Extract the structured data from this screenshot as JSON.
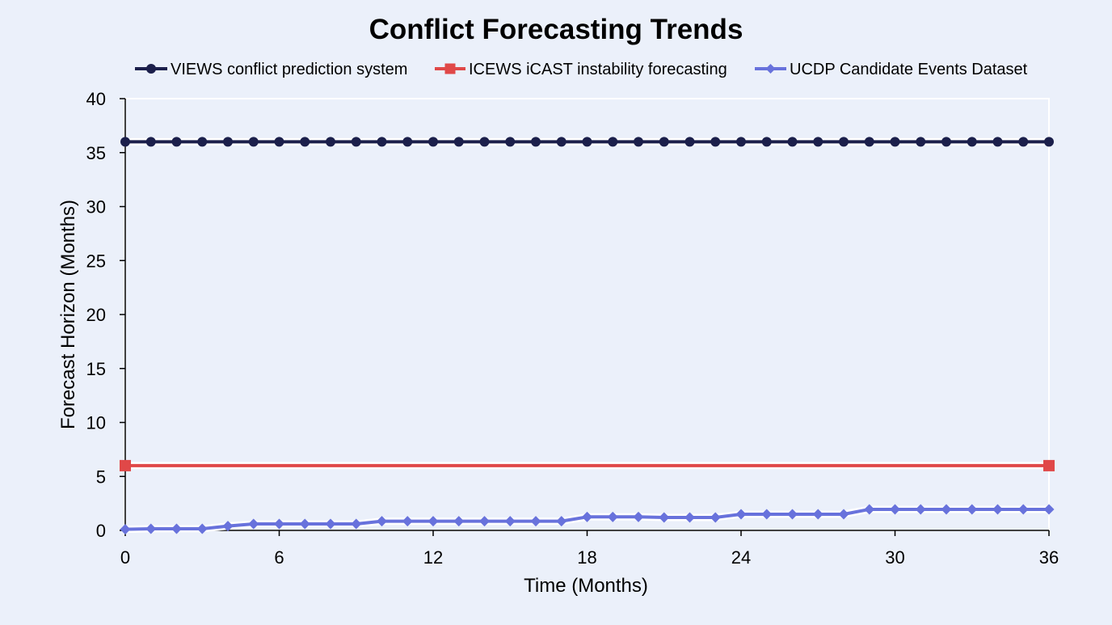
{
  "chart_data": {
    "type": "line",
    "title": "Conflict Forecasting Trends",
    "xlabel": "Time (Months)",
    "ylabel": "Forecast Horizon (Months)",
    "xlim": [
      0,
      36
    ],
    "ylim": [
      0,
      40
    ],
    "xticks": [
      0,
      6,
      12,
      18,
      24,
      30,
      36
    ],
    "yticks": [
      0,
      5,
      10,
      15,
      20,
      25,
      30,
      35,
      40
    ],
    "xtick_labels": [
      "0",
      "6",
      "12",
      "18",
      "24",
      "30",
      "36"
    ],
    "ytick_labels": [
      "0",
      "5",
      "10",
      "15",
      "20",
      "25",
      "30",
      "35",
      "40"
    ],
    "grid": false,
    "legend_position": "top",
    "series": [
      {
        "name": "VIEWS conflict prediction system",
        "color": "#1b1f4b",
        "marker": "circle",
        "x": [
          0,
          1,
          2,
          3,
          4,
          5,
          6,
          7,
          8,
          9,
          10,
          11,
          12,
          13,
          14,
          15,
          16,
          17,
          18,
          19,
          20,
          21,
          22,
          23,
          24,
          25,
          26,
          27,
          28,
          29,
          30,
          31,
          32,
          33,
          34,
          35,
          36
        ],
        "y": [
          36,
          36,
          36,
          36,
          36,
          36,
          36,
          36,
          36,
          36,
          36,
          36,
          36,
          36,
          36,
          36,
          36,
          36,
          36,
          36,
          36,
          36,
          36,
          36,
          36,
          36,
          36,
          36,
          36,
          36,
          36,
          36,
          36,
          36,
          36,
          36,
          36
        ]
      },
      {
        "name": "ICEWS iCAST instability forecasting",
        "color": "#e04848",
        "marker": "square",
        "x": [
          0,
          36
        ],
        "y": [
          6,
          6
        ]
      },
      {
        "name": "UCDP Candidate Events Dataset",
        "color": "#6872dc",
        "marker": "diamond",
        "x": [
          0,
          1,
          2,
          3,
          4,
          5,
          6,
          7,
          8,
          9,
          10,
          11,
          12,
          13,
          14,
          15,
          16,
          17,
          18,
          19,
          20,
          21,
          22,
          23,
          24,
          25,
          26,
          27,
          28,
          29,
          30,
          31,
          32,
          33,
          34,
          35,
          36
        ],
        "y": [
          0.1,
          0.15,
          0.15,
          0.15,
          0.4,
          0.6,
          0.6,
          0.6,
          0.6,
          0.6,
          0.85,
          0.85,
          0.85,
          0.85,
          0.85,
          0.85,
          0.85,
          0.85,
          1.25,
          1.25,
          1.25,
          1.2,
          1.2,
          1.2,
          1.5,
          1.5,
          1.5,
          1.5,
          1.5,
          1.95,
          1.95,
          1.95,
          1.95,
          1.95,
          1.95,
          1.95,
          1.95
        ]
      }
    ]
  }
}
